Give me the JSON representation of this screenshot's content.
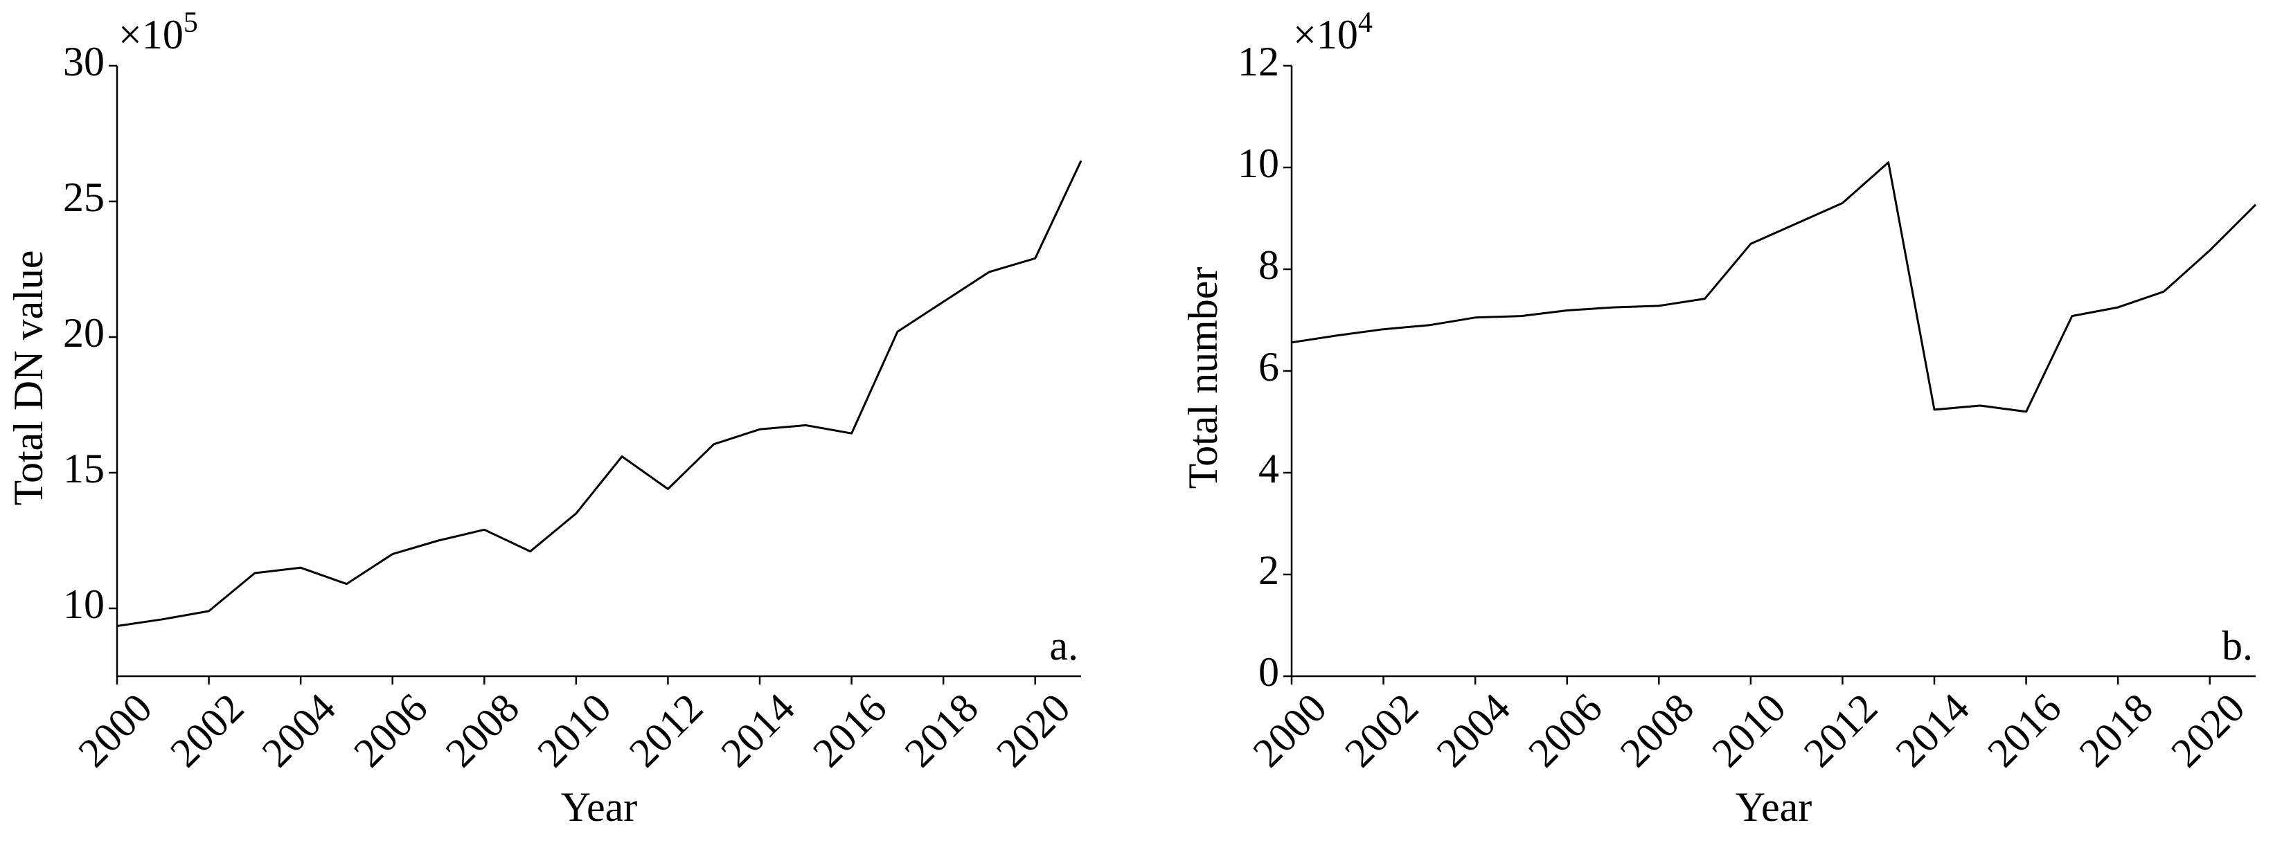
{
  "chart_data": [
    {
      "type": "line",
      "x_label": "Year",
      "y_label": "Total DN value",
      "y_multiplier": "×10",
      "y_exponent": "5",
      "annotation": "a.",
      "x": [
        2000,
        2001,
        2002,
        2003,
        2004,
        2005,
        2006,
        2007,
        2008,
        2009,
        2010,
        2011,
        2012,
        2013,
        2014,
        2015,
        2016,
        2017,
        2018,
        2019,
        2020,
        2021
      ],
      "values": [
        9.35,
        9.6,
        9.9,
        11.3,
        11.5,
        10.9,
        12.0,
        12.5,
        12.9,
        12.1,
        13.5,
        15.6,
        14.4,
        16.05,
        16.6,
        16.75,
        16.45,
        20.2,
        21.3,
        22.4,
        22.9,
        26.5
      ],
      "color": "#000000",
      "xlim": [
        2000,
        2021
      ],
      "xticks": [
        2000,
        2002,
        2004,
        2006,
        2008,
        2010,
        2012,
        2014,
        2016,
        2018,
        2020
      ],
      "ylim": [
        7.5,
        30
      ],
      "yticks": [
        10,
        15,
        20,
        25,
        30
      ]
    },
    {
      "type": "line",
      "x_label": "Year",
      "y_label": "Total number",
      "y_multiplier": "×10",
      "y_exponent": "4",
      "annotation": "b.",
      "x": [
        2000,
        2001,
        2002,
        2003,
        2004,
        2005,
        2006,
        2007,
        2008,
        2009,
        2010,
        2011,
        2012,
        2013,
        2014,
        2015,
        2016,
        2017,
        2018,
        2019,
        2020,
        2021
      ],
      "values": [
        6.56,
        6.7,
        6.82,
        6.9,
        7.05,
        7.08,
        7.19,
        7.25,
        7.28,
        7.42,
        8.5,
        8.9,
        9.3,
        10.1,
        5.24,
        5.32,
        5.2,
        7.08,
        7.25,
        7.56,
        8.37,
        9.27
      ],
      "color": "#000000",
      "xlim": [
        2000,
        2021
      ],
      "xticks": [
        2000,
        2002,
        2004,
        2006,
        2008,
        2010,
        2012,
        2014,
        2016,
        2018,
        2020
      ],
      "ylim": [
        0,
        12
      ],
      "yticks": [
        0,
        2,
        4,
        6,
        8,
        10,
        12
      ]
    }
  ]
}
